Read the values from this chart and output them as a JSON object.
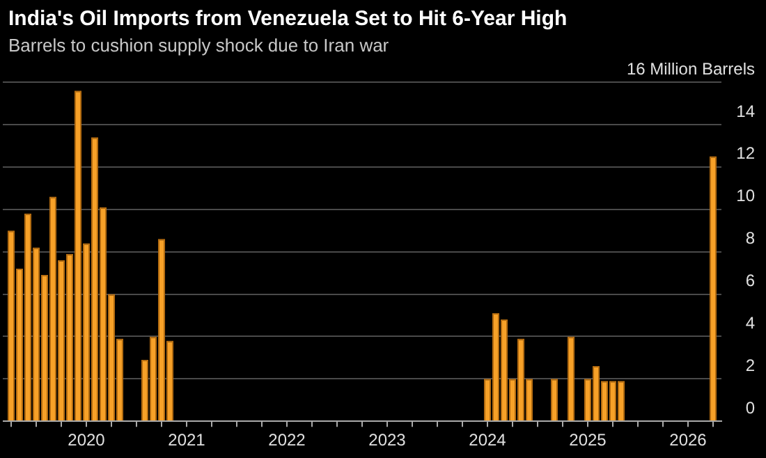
{
  "chart_data": {
    "type": "bar",
    "title": "India's Oil Imports from Venezuela Set to Hit 6-Year High",
    "subtitle": "Barrels to cushion supply shock due to Iran war",
    "series": [
      {
        "color": "#f7a128",
        "x": [
          "2019-04",
          "2019-05",
          "2019-06",
          "2019-07",
          "2019-08",
          "2019-09",
          "2019-10",
          "2019-11",
          "2019-12",
          "2020-01",
          "2020-02",
          "2020-03",
          "2020-04",
          "2020-05",
          "2020-08",
          "2020-09",
          "2020-10",
          "2020-11",
          "2024-01",
          "2024-02",
          "2024-03",
          "2024-04",
          "2024-05",
          "2024-06",
          "2024-09",
          "2024-11",
          "2025-01",
          "2025-02",
          "2025-03",
          "2025-04",
          "2025-05",
          "2026-04"
        ],
        "values": [
          9.0,
          7.2,
          9.8,
          8.2,
          6.9,
          10.6,
          7.6,
          7.9,
          15.6,
          8.4,
          13.4,
          10.1,
          6.0,
          3.9,
          2.9,
          4.0,
          8.6,
          3.8,
          2.0,
          5.1,
          4.8,
          2.0,
          3.9,
          2.0,
          2.0,
          4.0,
          2.0,
          2.6,
          1.9,
          1.9,
          1.9,
          12.5
        ]
      }
    ],
    "xlim": [
      "2019-03",
      "2026-05"
    ],
    "xticks": [
      {
        "value": "2019-04",
        "label": null
      },
      {
        "value": "2019-07",
        "label": null
      },
      {
        "value": "2019-10",
        "label": null
      },
      "2020",
      {
        "value": "2020-04",
        "label": null
      },
      {
        "value": "2020-07",
        "label": null
      },
      {
        "value": "2020-10",
        "label": null
      },
      "2021",
      {
        "value": "2021-04",
        "label": null
      },
      {
        "value": "2021-07",
        "label": null
      },
      {
        "value": "2021-10",
        "label": null
      },
      "2022",
      {
        "value": "2022-04",
        "label": null
      },
      {
        "value": "2022-07",
        "label": null
      },
      {
        "value": "2022-10",
        "label": null
      },
      "2023",
      {
        "value": "2023-04",
        "label": null
      },
      {
        "value": "2023-07",
        "label": null
      },
      {
        "value": "2023-10",
        "label": null
      },
      "2024",
      {
        "value": "2024-04",
        "label": null
      },
      {
        "value": "2024-07",
        "label": null
      },
      {
        "value": "2024-10",
        "label": null
      },
      "2025",
      {
        "value": "2025-04",
        "label": null
      },
      {
        "value": "2025-07",
        "label": null
      },
      {
        "value": "2025-10",
        "label": null
      },
      "2026",
      {
        "value": "2026-04",
        "label": null
      }
    ],
    "ylim": [
      0,
      16
    ],
    "yticks": [
      0,
      2,
      4,
      6,
      8,
      10,
      12,
      14,
      {
        "value": 16,
        "label": "16 Million Barrels"
      }
    ],
    "grid": "y",
    "legend": false
  }
}
